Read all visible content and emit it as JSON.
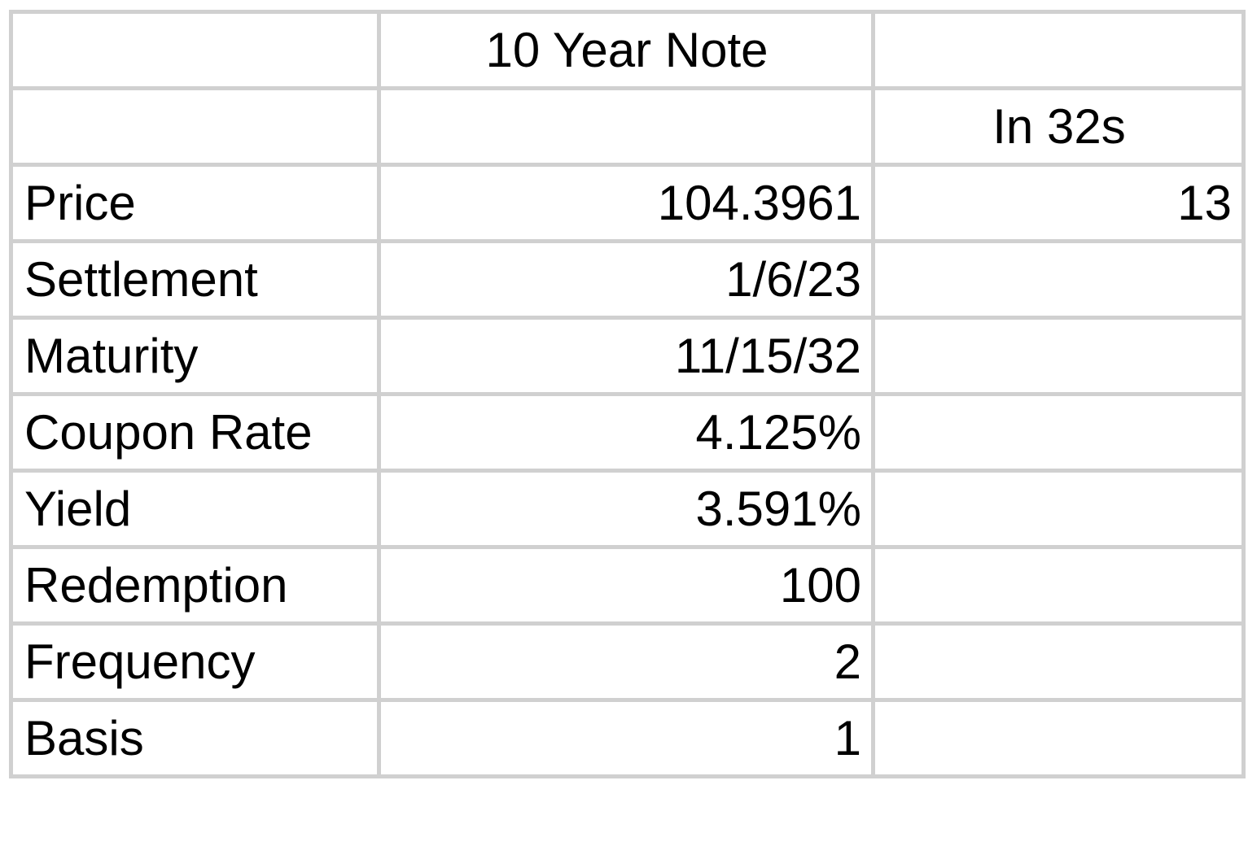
{
  "header": {
    "row1": [
      "",
      "10 Year Note",
      ""
    ],
    "row2": [
      "",
      "",
      "In 32s"
    ]
  },
  "rows": [
    {
      "label": "Price",
      "value": "104.3961",
      "extra": "13"
    },
    {
      "label": "Settlement",
      "value": "1/6/23",
      "extra": ""
    },
    {
      "label": "Maturity",
      "value": "11/15/32",
      "extra": ""
    },
    {
      "label": "Coupon Rate",
      "value": "4.125%",
      "extra": ""
    },
    {
      "label": "Yield",
      "value": "3.591%",
      "extra": ""
    },
    {
      "label": "Redemption",
      "value": "100",
      "extra": ""
    },
    {
      "label": "Frequency",
      "value": "2",
      "extra": ""
    },
    {
      "label": "Basis",
      "value": "1",
      "extra": ""
    }
  ],
  "colors": {
    "gridline": "#d0d0d0",
    "text": "#000000",
    "background": "#ffffff"
  }
}
